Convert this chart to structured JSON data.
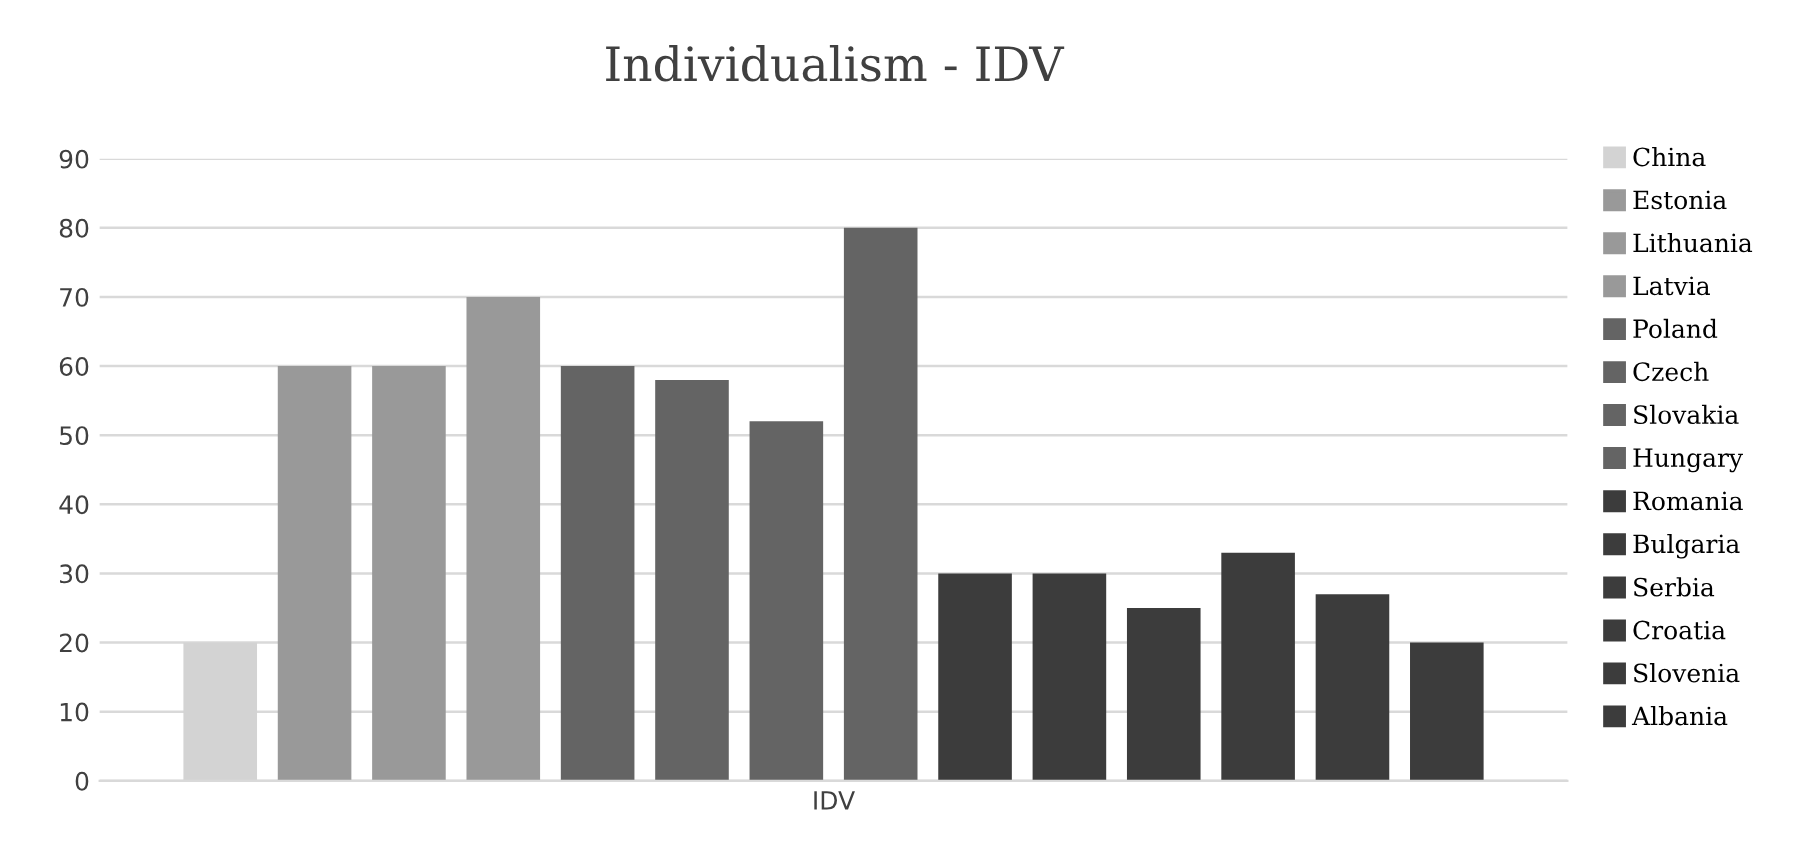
{
  "chart_data": {
    "type": "bar",
    "title": "Individualism - IDV",
    "categories": [
      "IDV"
    ],
    "series": [
      {
        "name": "China",
        "color": "#d3d3d3",
        "values": [
          20
        ]
      },
      {
        "name": "Estonia",
        "color": "#999999",
        "values": [
          60
        ]
      },
      {
        "name": "Lithuania",
        "color": "#999999",
        "values": [
          60
        ]
      },
      {
        "name": "Latvia",
        "color": "#999999",
        "values": [
          70
        ]
      },
      {
        "name": "Poland",
        "color": "#646464",
        "values": [
          60
        ]
      },
      {
        "name": "Czech",
        "color": "#646464",
        "values": [
          58
        ]
      },
      {
        "name": "Slovakia",
        "color": "#646464",
        "values": [
          52
        ]
      },
      {
        "name": "Hungary",
        "color": "#646464",
        "values": [
          80
        ]
      },
      {
        "name": "Romania",
        "color": "#3c3c3c",
        "values": [
          30
        ]
      },
      {
        "name": "Bulgaria",
        "color": "#3c3c3c",
        "values": [
          30
        ]
      },
      {
        "name": "Serbia",
        "color": "#3c3c3c",
        "values": [
          25
        ]
      },
      {
        "name": "Croatia",
        "color": "#3c3c3c",
        "values": [
          33
        ]
      },
      {
        "name": "Slovenia",
        "color": "#3c3c3c",
        "values": [
          27
        ]
      },
      {
        "name": "Albania",
        "color": "#3c3c3c",
        "values": [
          20
        ]
      }
    ],
    "ylim": [
      0,
      90
    ],
    "yticks": [
      0,
      10,
      20,
      30,
      40,
      50,
      60,
      70,
      80,
      90
    ],
    "grid": "y",
    "legend": "right"
  }
}
